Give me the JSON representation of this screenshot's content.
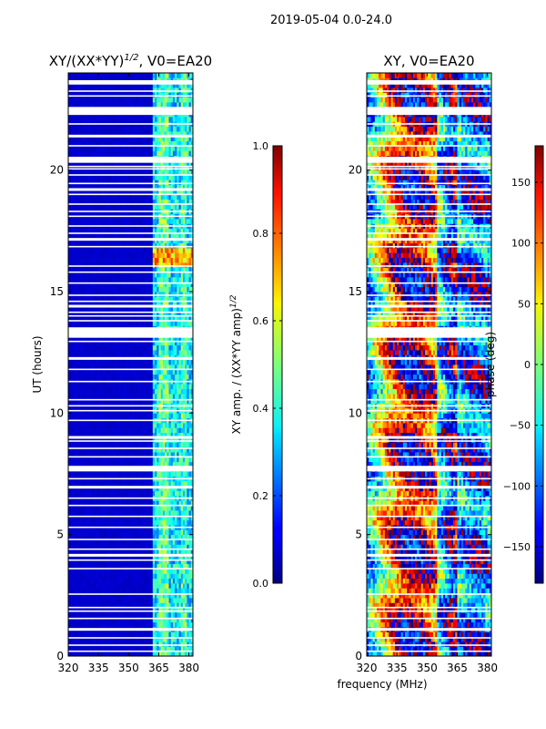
{
  "suptitle": "2019-05-04 0.0-24.0",
  "chart_data": [
    {
      "type": "heatmap",
      "title": "XY/(XX*YY)",
      "title_exponent": "1/2",
      "title_suffix": ", V0=EA20",
      "xlabel": "",
      "ylabel": "UT (hours)",
      "xlim": [
        320,
        382
      ],
      "ylim": [
        0,
        24
      ],
      "xticks": [
        "320",
        "335",
        "350",
        "365",
        "380"
      ],
      "xtick_values": [
        320,
        335,
        350,
        365,
        380
      ],
      "yticks": [
        "0",
        "5",
        "10",
        "15",
        "20"
      ],
      "ytick_values": [
        0,
        5,
        10,
        15,
        20
      ],
      "colorbar": {
        "label": "XY amp. / (XX*YY amp)",
        "label_exponent": "1/2",
        "range": [
          0.0,
          1.0
        ],
        "ticks": [
          "0.0",
          "0.2",
          "0.4",
          "0.6",
          "0.8",
          "1.0"
        ],
        "tick_values": [
          0.0,
          0.2,
          0.4,
          0.6,
          0.8,
          1.0
        ]
      },
      "description_values": "low amplitude (~0.05) below 362 MHz; bands 362-382 MHz at ~0.3-0.5; peak ~0.8 near 16-16.8 h"
    },
    {
      "type": "heatmap",
      "title": "XY, V0=EA20",
      "xlabel": "frequency (MHz)",
      "ylabel": "",
      "xlim": [
        320,
        382
      ],
      "ylim": [
        0,
        24
      ],
      "xticks": [
        "320",
        "335",
        "350",
        "365",
        "380"
      ],
      "xtick_values": [
        320,
        335,
        350,
        365,
        380
      ],
      "yticks": [
        "0",
        "5",
        "10",
        "15",
        "20"
      ],
      "ytick_values": [
        0,
        5,
        10,
        15,
        20
      ],
      "colorbar": {
        "label": "phase (deg)",
        "range": [
          -180,
          180
        ],
        "ticks": [
          "−150",
          "−100",
          "−50",
          "0",
          "50",
          "100",
          "150"
        ],
        "tick_values": [
          -150,
          -100,
          -50,
          0,
          50,
          100,
          150
        ]
      }
    }
  ],
  "flagged_hours": [
    0.2,
    0.45,
    0.75,
    1.1,
    1.55,
    1.85,
    2.0,
    2.55,
    3.6,
    3.95,
    4.15,
    4.4,
    4.8,
    5.3,
    5.75,
    6.2,
    6.5,
    6.95,
    7.3,
    7.7,
    7.8,
    8.2,
    8.55,
    8.85,
    9.0,
    9.7,
    10.1,
    10.3,
    10.55,
    11.3,
    11.8,
    12.25,
    12.95,
    13.3,
    13.5,
    13.8,
    14.0,
    14.15,
    14.4,
    14.6,
    14.85,
    15.35,
    15.8,
    16.05,
    16.85,
    17.15,
    17.4,
    17.7,
    18.1,
    18.3,
    18.6,
    19.0,
    19.2,
    19.45,
    19.8,
    20.05,
    20.15,
    20.45,
    21.0,
    21.4,
    21.9,
    22.3,
    23.05,
    23.25,
    23.55
  ]
}
